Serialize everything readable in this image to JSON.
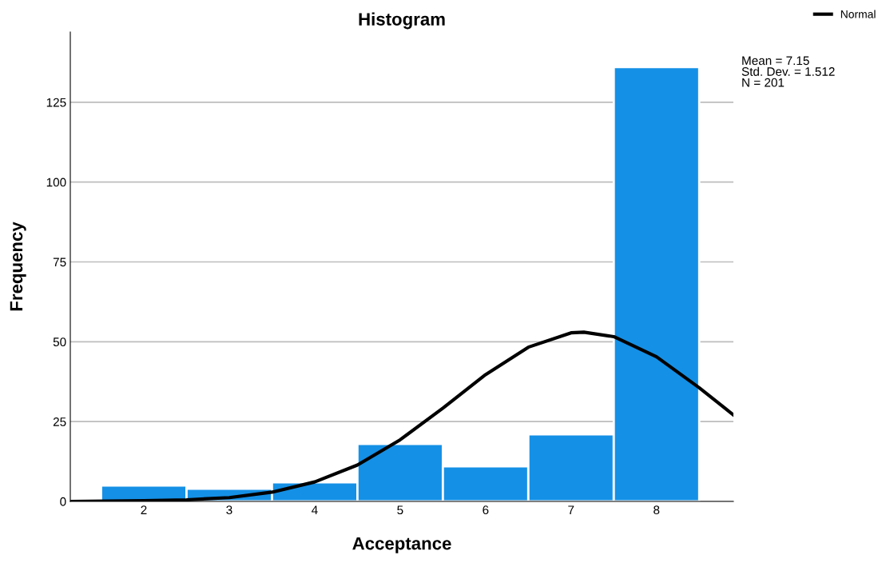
{
  "chart_data": {
    "type": "histogram",
    "title": "Histogram",
    "xlabel": "Acceptance",
    "ylabel": "Frequency",
    "bins": [
      1.5,
      2.5,
      3.5,
      4.5,
      5.5,
      6.5,
      7.5,
      8.5
    ],
    "series": [
      {
        "color": "#1490e6",
        "values": [
          5,
          4,
          6,
          18,
          11,
          21,
          136
        ]
      },
      {
        "type": "line",
        "name": "Normal",
        "color": "#000000",
        "x": [
          1.14,
          2,
          2.5,
          3,
          3.5,
          4,
          4.5,
          5,
          5.5,
          6,
          6.5,
          7,
          7.15,
          7.5,
          8,
          8.5,
          8.9
        ],
        "values": [
          0.0,
          0.2,
          0.5,
          1.2,
          2.9,
          6.1,
          11.4,
          19.3,
          29.2,
          39.7,
          48.3,
          52.8,
          53.0,
          51.6,
          45.3,
          35.6,
          27.1
        ]
      }
    ],
    "xlim": [
      1.14,
      8.9
    ],
    "xticks": [
      2,
      3,
      4,
      5,
      6,
      7,
      8
    ],
    "ylim": [
      0,
      147
    ],
    "yticks": [
      0,
      25,
      50,
      75,
      100,
      125
    ],
    "grid": "y",
    "legend": "top right",
    "marker": "none",
    "line_style": "solid",
    "annotations": [
      "Mean = 7.15\nStd. Dev. = 1.512\nN = 201"
    ]
  }
}
